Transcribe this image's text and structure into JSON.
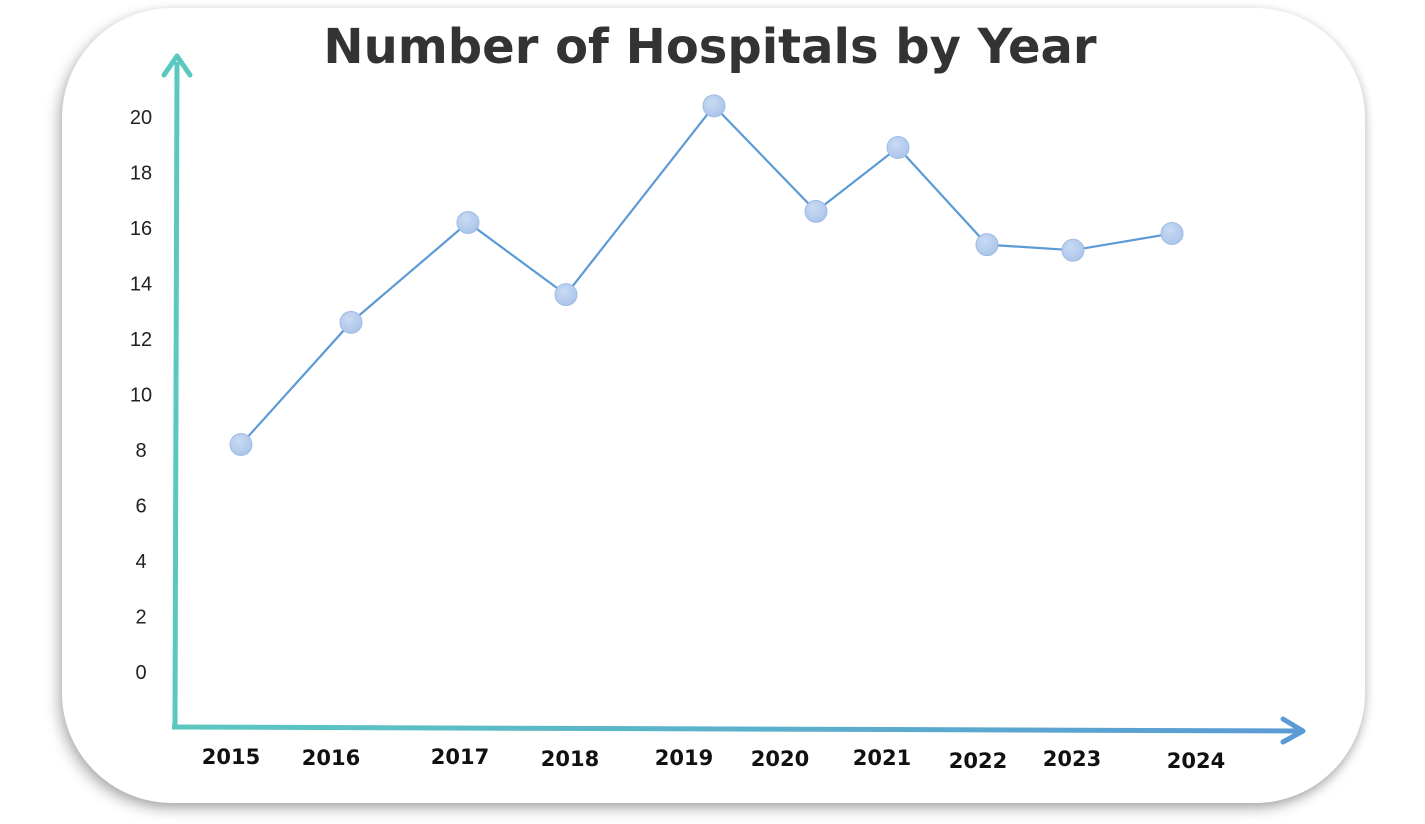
{
  "chart_data": {
    "type": "line",
    "title": "Number of Hospitals by Year",
    "xlabel": "",
    "ylabel": "",
    "categories": [
      "2015",
      "2016",
      "2017",
      "2018",
      "2019",
      "2020",
      "2021",
      "2022",
      "2023",
      "2024"
    ],
    "x": [
      2015,
      2016,
      2017,
      2018,
      2019,
      2020,
      2021,
      2022,
      2023,
      2024
    ],
    "series": [
      {
        "values": [
          8.2,
          12.6,
          16.2,
          13.6,
          20.4,
          16.6,
          18.9,
          15.4,
          15.2,
          15.8
        ]
      }
    ],
    "yticks": [
      0,
      2,
      4,
      6,
      8,
      10,
      12,
      14,
      16,
      18,
      20
    ],
    "ylim": [
      -2,
      22
    ],
    "grid": false,
    "legend": "none",
    "colors": {
      "line": "#5b9bd5",
      "marker": "#a9c4ea",
      "y_axis": "#5bc8c0",
      "x_axis_start": "#5bc8c0",
      "x_axis_end": "#5b9bd5",
      "title": "#333333"
    }
  }
}
